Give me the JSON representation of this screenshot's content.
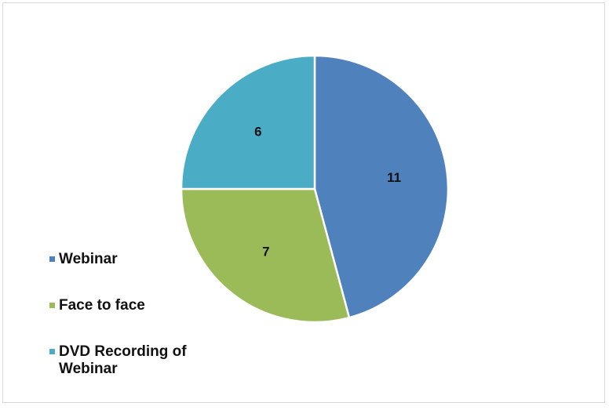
{
  "chart_data": {
    "type": "pie",
    "title": "",
    "categories": [
      "Webinar",
      "Face to face",
      "DVD Recording  of Webinar"
    ],
    "values": [
      11,
      7,
      6
    ],
    "colors": [
      "#4f81bd",
      "#9bbb59",
      "#4bacc6"
    ],
    "data_labels": [
      "11",
      "7",
      "6"
    ],
    "legend_position": "left",
    "start_angle": "12 o'clock",
    "direction": "clockwise"
  }
}
